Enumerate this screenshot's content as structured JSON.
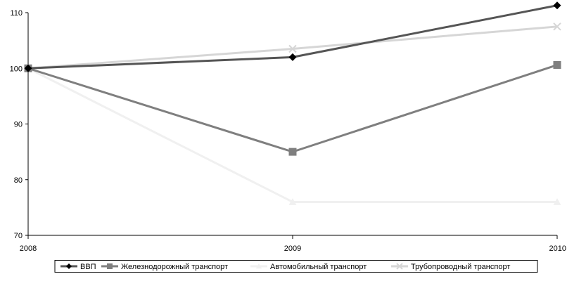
{
  "chart_data": {
    "type": "line",
    "x": [
      "2008",
      "2009",
      "2010"
    ],
    "ylim": [
      70,
      110
    ],
    "y_ticks": [
      "70",
      "80",
      "90",
      "100",
      "110"
    ],
    "grid": false,
    "legend_position": "bottom",
    "series": [
      {
        "name": "ВВП",
        "values": [
          100,
          102,
          111.3
        ],
        "color": "#555555",
        "marker": "diamond",
        "marker_color": "#000000"
      },
      {
        "name": "Железнодорожный транспорт",
        "values": [
          100,
          85,
          100.6
        ],
        "color": "#7f7f7f",
        "marker": "square",
        "marker_color": "#7f7f7f"
      },
      {
        "name": "Автомобильный транспорт",
        "values": [
          100,
          76,
          76
        ],
        "color": "#f0f0f0",
        "marker": "triangle",
        "marker_color": "#f0f0f0"
      },
      {
        "name": "Трубопроводный транспорт",
        "values": [
          100,
          103.5,
          107.5
        ],
        "color": "#d6d6d6",
        "marker": "x",
        "marker_color": "#d6d6d6"
      }
    ]
  }
}
